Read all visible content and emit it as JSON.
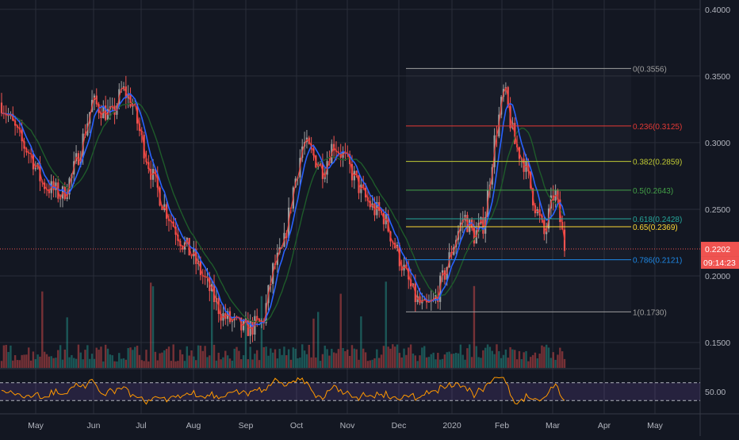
{
  "chart_data": {
    "type": "candlestick",
    "price_axis": {
      "ticks": [
        "0.4000",
        "0.3500",
        "0.3000",
        "0.2500",
        "0.2000",
        "0.1500"
      ],
      "tick_values": [
        0.4,
        0.35,
        0.3,
        0.25,
        0.2,
        0.15
      ],
      "range": [
        0.131,
        0.407
      ]
    },
    "time_axis": {
      "labels": [
        "May",
        "Jun",
        "Jul",
        "Aug",
        "Sep",
        "Oct",
        "Nov",
        "Dec",
        "2020",
        "Feb",
        "Mar",
        "Apr",
        "May"
      ]
    },
    "last_price": {
      "value": 0.2202,
      "label": "0.2202",
      "countdown": "09:14:23"
    },
    "fibonacci": {
      "color_note": "retracement levels drawn from 0.3556 to 0.1730",
      "levels": [
        {
          "label": "0(0.3556)",
          "value": 0.3556,
          "color": "#9e9e9e"
        },
        {
          "label": "0.236(0.3125)",
          "value": 0.3125,
          "color": "#e53935"
        },
        {
          "label": "0.382(0.2859)",
          "value": 0.2859,
          "color": "#c0ca33"
        },
        {
          "label": "0.5(0.2643)",
          "value": 0.2643,
          "color": "#43a047"
        },
        {
          "label": "0.618(0.2428)",
          "value": 0.2428,
          "color": "#26a69a"
        },
        {
          "label": "0.65(0.2369)",
          "value": 0.2369,
          "color": "#fdd835"
        },
        {
          "label": "0.786(0.2121)",
          "value": 0.2121,
          "color": "#1e88e5"
        },
        {
          "label": "1(0.1730)",
          "value": 0.173,
          "color": "#9e9e9e"
        }
      ]
    },
    "series": [
      {
        "name": "price",
        "style": "candles",
        "approx_closes": [
          0.33,
          0.315,
          0.3,
          0.29,
          0.27,
          0.265,
          0.26,
          0.275,
          0.3,
          0.33,
          0.325,
          0.32,
          0.34,
          0.33,
          0.3,
          0.275,
          0.255,
          0.24,
          0.225,
          0.215,
          0.2,
          0.185,
          0.17,
          0.165,
          0.16,
          0.162,
          0.165,
          0.205,
          0.22,
          0.265,
          0.3,
          0.29,
          0.28,
          0.3,
          0.29,
          0.275,
          0.26,
          0.25,
          0.245,
          0.225,
          0.205,
          0.185,
          0.175,
          0.18,
          0.2,
          0.225,
          0.245,
          0.23,
          0.24,
          0.3,
          0.34,
          0.3,
          0.285,
          0.255,
          0.23,
          0.265,
          0.222
        ]
      }
    ],
    "rsi": {
      "tick_label": "50.00",
      "upper": 70,
      "lower": 30,
      "value": 38
    }
  }
}
